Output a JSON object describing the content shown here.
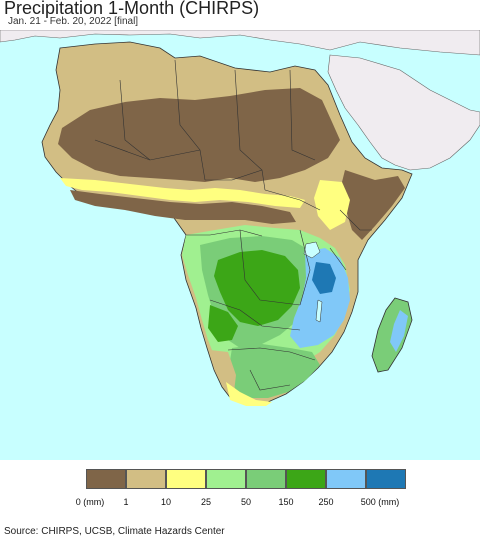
{
  "header": {
    "title": "Precipitation 1-Month (CHIRPS)",
    "subtitle": "Jan. 21 - Feb. 20, 2022 [final]"
  },
  "map": {
    "region": "Africa",
    "ocean_color": "#c8ffff",
    "non_data_land_color": "#f0ecf0"
  },
  "legend": {
    "colors": [
      "#7f6548",
      "#d2be84",
      "#ffff80",
      "#a0f090",
      "#7acd78",
      "#3ca617",
      "#80c8f8",
      "#1e78b4"
    ],
    "tick_labels": [
      "0 (mm)",
      "1",
      "10",
      "25",
      "50",
      "150",
      "250",
      "500 (mm)"
    ]
  },
  "footer": {
    "source": "Source: CHIRPS, UCSB, Climate Hazards Center"
  }
}
